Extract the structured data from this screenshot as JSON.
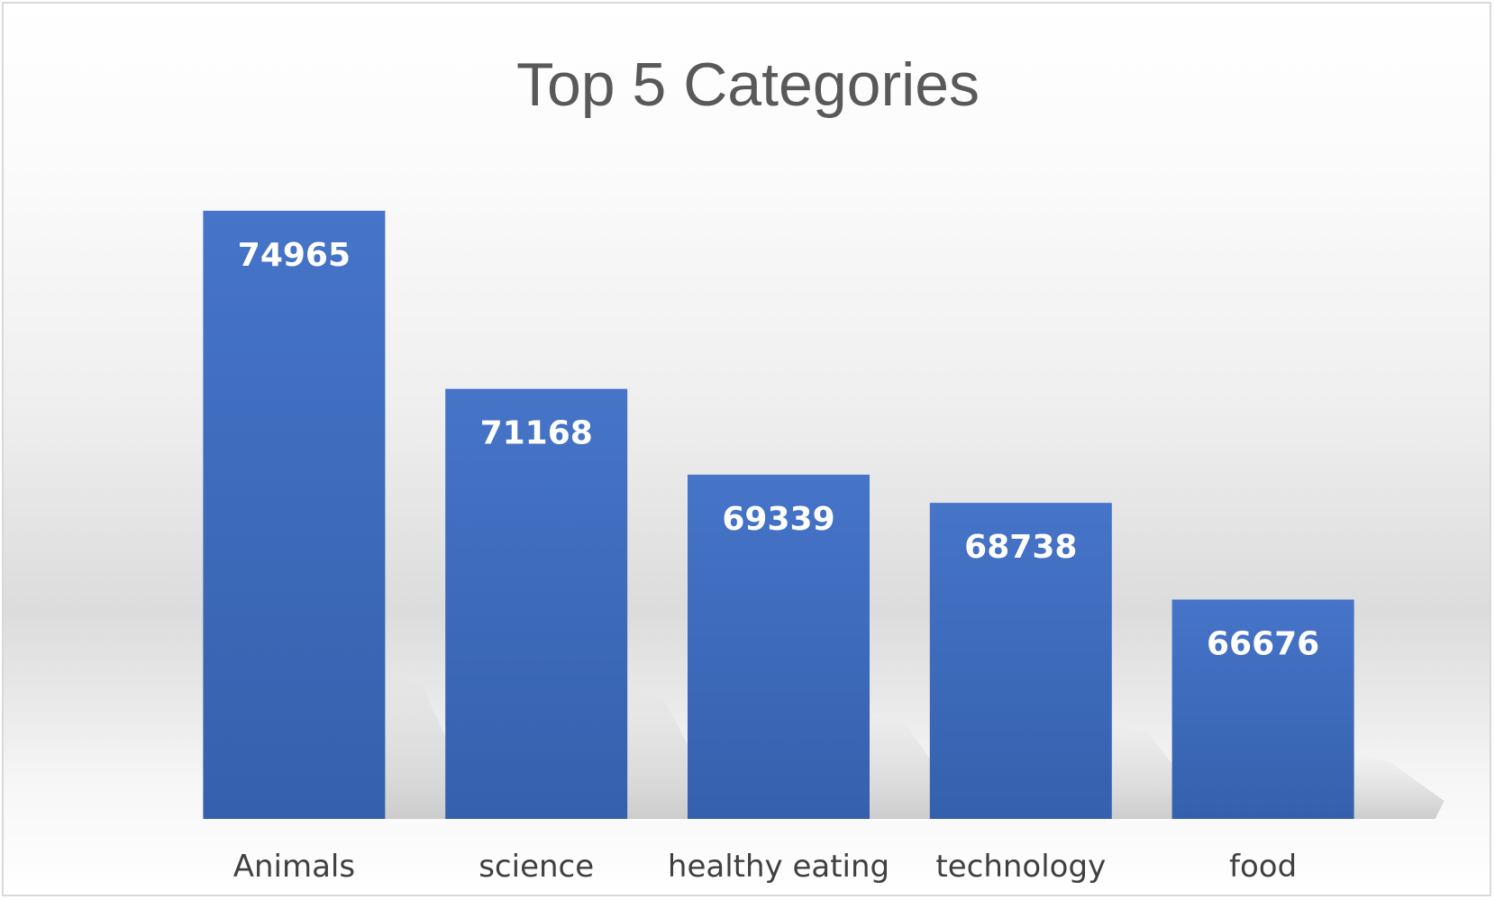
{
  "chart_data": {
    "type": "bar",
    "title": "Top 5 Categories",
    "categories": [
      "Animals",
      "science",
      "healthy eating",
      "technology",
      "food"
    ],
    "values": [
      74965,
      71168,
      69339,
      68738,
      66676
    ],
    "ylim": [
      62000,
      76500
    ],
    "xlabel": "",
    "ylabel": "",
    "grid": false,
    "legend": "none",
    "data_labels": "inside-top",
    "colors": {
      "bar_top": "#4674c8",
      "bar_bottom": "#3560ad",
      "title": "#595959",
      "tick": "#404040",
      "data_label": "#ffffff"
    }
  }
}
